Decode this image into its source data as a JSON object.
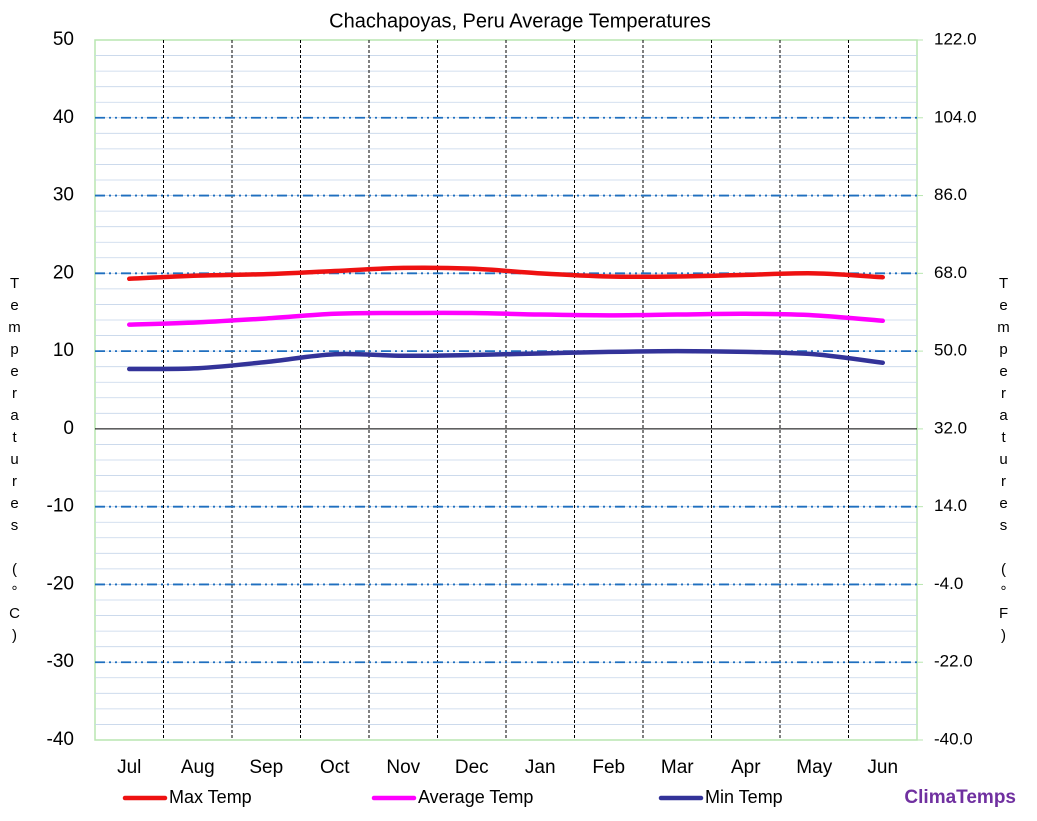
{
  "chart_data": {
    "type": "line",
    "title": "Chachapoyas, Peru Average Temperatures",
    "y_label": "Temperatures (°C)",
    "y2_label": "Temperatures (°F)",
    "brand": "ClimaTemps",
    "categories": [
      "Jul",
      "Aug",
      "Sep",
      "Oct",
      "Nov",
      "Dec",
      "Jan",
      "Feb",
      "Mar",
      "Apr",
      "May",
      "Jun"
    ],
    "series": [
      {
        "name": "Max Temp",
        "color": "#ee1111",
        "values": [
          19.3,
          19.7,
          19.9,
          20.3,
          20.7,
          20.6,
          20.0,
          19.6,
          19.6,
          19.8,
          20.0,
          19.5
        ]
      },
      {
        "name": "Average Temp",
        "color": "#ff00ff",
        "values": [
          13.4,
          13.7,
          14.2,
          14.8,
          14.9,
          14.9,
          14.7,
          14.6,
          14.7,
          14.8,
          14.6,
          13.9
        ]
      },
      {
        "name": "Min Temp",
        "color": "#333399",
        "values": [
          7.7,
          7.8,
          8.6,
          9.6,
          9.4,
          9.5,
          9.7,
          9.9,
          10.0,
          9.9,
          9.6,
          8.5
        ]
      }
    ],
    "ylim": [
      -40,
      50
    ],
    "yticks": [
      50,
      40,
      30,
      20,
      10,
      0,
      -10,
      -20,
      -30,
      -40
    ],
    "y2lim": [
      -40,
      122
    ],
    "y2ticks": [
      {
        "value": 122,
        "label": "122.0"
      },
      {
        "value": 104,
        "label": "104.0"
      },
      {
        "value": 86,
        "label": "86.0"
      },
      {
        "value": 68,
        "label": "68.0"
      },
      {
        "value": 50,
        "label": "50.0"
      },
      {
        "value": 32,
        "label": "32.0"
      },
      {
        "value": 14,
        "label": "14.0"
      },
      {
        "value": -4,
        "label": "-4.0"
      },
      {
        "value": -22,
        "label": "-22.0"
      },
      {
        "value": -40,
        "label": "-40.0"
      }
    ],
    "grid": true
  }
}
